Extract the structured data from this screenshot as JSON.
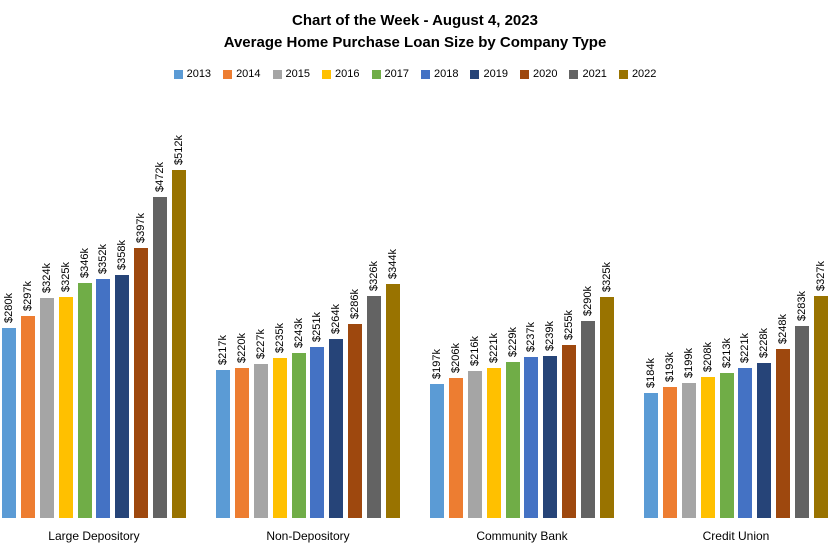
{
  "chart_data": {
    "type": "bar",
    "title": "Chart of the Week - August 4, 2023",
    "subtitle": "Average Home Purchase Loan Size by Company Type",
    "value_unit": "thousand USD",
    "label_format": "$Nk",
    "grid": false,
    "axes_visible": false,
    "legend_position": "top",
    "ylim": [
      0,
      560
    ],
    "categories": [
      "Large Depository",
      "Non-Depository",
      "Community Bank",
      "Credit Union"
    ],
    "series": [
      {
        "name": "2013",
        "color": "#5B9BD5",
        "values": [
          280,
          217,
          197,
          184
        ],
        "labels": [
          "$280k",
          "$217k",
          "$197k",
          "$184k"
        ]
      },
      {
        "name": "2014",
        "color": "#ED7D31",
        "values": [
          297,
          220,
          206,
          193
        ],
        "labels": [
          "$297k",
          "$220k",
          "$206k",
          "$193k"
        ]
      },
      {
        "name": "2015",
        "color": "#A5A5A5",
        "values": [
          324,
          227,
          216,
          199
        ],
        "labels": [
          "$324k",
          "$227k",
          "$216k",
          "$199k"
        ]
      },
      {
        "name": "2016",
        "color": "#FFC000",
        "values": [
          325,
          235,
          221,
          208
        ],
        "labels": [
          "$325k",
          "$235k",
          "$221k",
          "$208k"
        ]
      },
      {
        "name": "2017",
        "color": "#70AD47",
        "values": [
          346,
          243,
          229,
          213
        ],
        "labels": [
          "$346k",
          "$243k",
          "$229k",
          "$213k"
        ]
      },
      {
        "name": "2018",
        "color": "#4472C4",
        "values": [
          352,
          251,
          237,
          221
        ],
        "labels": [
          "$352k",
          "$251k",
          "$237k",
          "$221k"
        ]
      },
      {
        "name": "2019",
        "color": "#264478",
        "values": [
          358,
          264,
          239,
          228
        ],
        "labels": [
          "$358k",
          "$264k",
          "$239k",
          "$228k"
        ]
      },
      {
        "name": "2020",
        "color": "#9E480E",
        "values": [
          397,
          286,
          255,
          248
        ],
        "labels": [
          "$397k",
          "$286k",
          "$255k",
          "$248k"
        ]
      },
      {
        "name": "2021",
        "color": "#636363",
        "values": [
          472,
          326,
          290,
          283
        ],
        "labels": [
          "$472k",
          "$326k",
          "$290k",
          "$283k"
        ]
      },
      {
        "name": "2022",
        "color": "#997300",
        "values": [
          512,
          344,
          325,
          327
        ],
        "labels": [
          "$512k",
          "$344k",
          "$325k",
          "$327k"
        ]
      }
    ]
  }
}
